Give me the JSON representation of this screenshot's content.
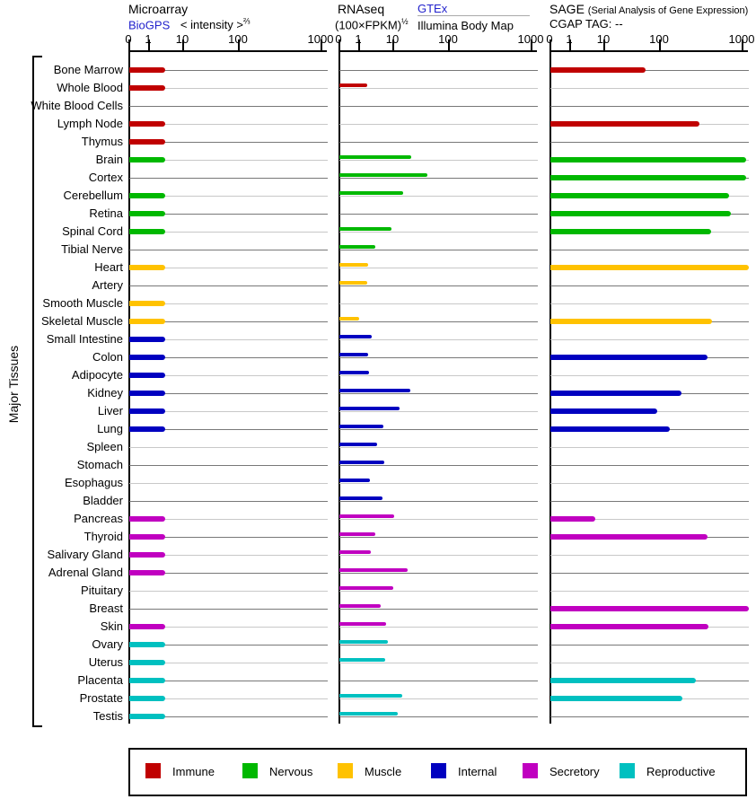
{
  "axis_title": "Major Tissues",
  "panels": [
    {
      "title": "Microarray",
      "link": "BioGPS",
      "scale_label": "< intensity >",
      "scale_sup": "⅔"
    },
    {
      "title": "RNAseq",
      "scale_label": "(100×FPKM)",
      "scale_sup": "½",
      "link": "GTEx",
      "link2": "Illumina Body Map"
    },
    {
      "title": "SAGE",
      "subtitle": "(Serial Analysis of Gene Expression)",
      "cgap_label": "CGAP TAG:",
      "cgap_value": "--"
    }
  ],
  "legend": {
    "items": [
      {
        "label": "Immune",
        "color": "#c00000"
      },
      {
        "label": "Nervous",
        "color": "#00b800"
      },
      {
        "label": "Muscle",
        "color": "#ffc200"
      },
      {
        "label": "Internal",
        "color": "#0000c0"
      },
      {
        "label": "Secretory",
        "color": "#c000c0"
      },
      {
        "label": "Reproductive",
        "color": "#00c0c0"
      }
    ]
  },
  "chart_data": {
    "type": "bar",
    "orientation": "horizontal",
    "scale_note": "nonlinear axis, ticks at 0/1/10/100/1000; values are approximate axis readings",
    "axis_tick_labels": [
      "0",
      "1",
      "10",
      "100",
      "1000"
    ],
    "axis_ticks": [
      0,
      1,
      10,
      100,
      1000
    ],
    "panel_keys": [
      "microarray",
      "rnaseq",
      "sage"
    ],
    "group_colors": {
      "immune": "#c00000",
      "nervous": "#00b800",
      "muscle": "#ffc200",
      "internal": "#0000c0",
      "secretory": "#c000c0",
      "reproductive": "#00c0c0"
    },
    "rows": [
      {
        "tissue": "Bone Marrow",
        "group": "immune",
        "microarray": 3,
        "rnaseq": null,
        "sage": 55
      },
      {
        "tissue": "Whole Blood",
        "group": "immune",
        "microarray": 3,
        "rnaseq": 1.7,
        "sage": null
      },
      {
        "tissue": "White Blood Cells",
        "group": "immune",
        "microarray": null,
        "rnaseq": null,
        "sage": null
      },
      {
        "tissue": "Lymph Node",
        "group": "immune",
        "microarray": 3,
        "rnaseq": null,
        "sage": 300
      },
      {
        "tissue": "Thymus",
        "group": "immune",
        "microarray": 3,
        "rnaseq": null,
        "sage": null
      },
      {
        "tissue": "Brain",
        "group": "nervous",
        "microarray": 3,
        "rnaseq": 21,
        "sage": 1100
      },
      {
        "tissue": "Cortex",
        "group": "nervous",
        "microarray": null,
        "rnaseq": 40,
        "sage": 1100
      },
      {
        "tissue": "Cerebellum",
        "group": "nervous",
        "microarray": 3,
        "rnaseq": 15,
        "sage": 690
      },
      {
        "tissue": "Retina",
        "group": "nervous",
        "microarray": 3,
        "rnaseq": null,
        "sage": 730
      },
      {
        "tissue": "Spinal Cord",
        "group": "nervous",
        "microarray": 3,
        "rnaseq": 9,
        "sage": 420
      },
      {
        "tissue": "Tibial Nerve",
        "group": "nervous",
        "microarray": null,
        "rnaseq": 3,
        "sage": null
      },
      {
        "tissue": "Heart",
        "group": "muscle",
        "microarray": 3,
        "rnaseq": 1.8,
        "sage": 1300
      },
      {
        "tissue": "Artery",
        "group": "muscle",
        "microarray": null,
        "rnaseq": 1.7,
        "sage": null
      },
      {
        "tissue": "Smooth Muscle",
        "group": "muscle",
        "microarray": 3,
        "rnaseq": null,
        "sage": null
      },
      {
        "tissue": "Skeletal Muscle",
        "group": "muscle",
        "microarray": 3,
        "rnaseq": 1,
        "sage": 430
      },
      {
        "tissue": "Small Intestine",
        "group": "internal",
        "microarray": 3,
        "rnaseq": 2.3,
        "sage": null
      },
      {
        "tissue": "Colon",
        "group": "internal",
        "microarray": 3,
        "rnaseq": 1.8,
        "sage": 375
      },
      {
        "tissue": "Adipocyte",
        "group": "internal",
        "microarray": 3,
        "rnaseq": 1.9,
        "sage": null
      },
      {
        "tissue": "Kidney",
        "group": "internal",
        "microarray": 3,
        "rnaseq": 20,
        "sage": 180
      },
      {
        "tissue": "Liver",
        "group": "internal",
        "microarray": 3,
        "rnaseq": 13,
        "sage": 90
      },
      {
        "tissue": "Lung",
        "group": "internal",
        "microarray": 3,
        "rnaseq": 5,
        "sage": 130
      },
      {
        "tissue": "Spleen",
        "group": "internal",
        "microarray": null,
        "rnaseq": 3.4,
        "sage": null
      },
      {
        "tissue": "Stomach",
        "group": "internal",
        "microarray": null,
        "rnaseq": 5.4,
        "sage": null
      },
      {
        "tissue": "Esophagus",
        "group": "internal",
        "microarray": null,
        "rnaseq": 2.1,
        "sage": null
      },
      {
        "tissue": "Bladder",
        "group": "internal",
        "microarray": null,
        "rnaseq": 4.8,
        "sage": null
      },
      {
        "tissue": "Pancreas",
        "group": "secretory",
        "microarray": 3,
        "rnaseq": 10.5,
        "sage": 5.5
      },
      {
        "tissue": "Thyroid",
        "group": "secretory",
        "microarray": 3,
        "rnaseq": 3,
        "sage": 375
      },
      {
        "tissue": "Salivary Gland",
        "group": "secretory",
        "microarray": 3,
        "rnaseq": 2.2,
        "sage": null
      },
      {
        "tissue": "Adrenal Gland",
        "group": "secretory",
        "microarray": 3,
        "rnaseq": 18,
        "sage": null
      },
      {
        "tissue": "Pituitary",
        "group": "secretory",
        "microarray": null,
        "rnaseq": 10,
        "sage": null
      },
      {
        "tissue": "Breast",
        "group": "secretory",
        "microarray": null,
        "rnaseq": 4.3,
        "sage": 1300
      },
      {
        "tissue": "Skin",
        "group": "secretory",
        "microarray": 3,
        "rnaseq": 6,
        "sage": 385
      },
      {
        "tissue": "Ovary",
        "group": "reproductive",
        "microarray": 3,
        "rnaseq": 7,
        "sage": null
      },
      {
        "tissue": "Uterus",
        "group": "reproductive",
        "microarray": 3,
        "rnaseq": 5.7,
        "sage": null
      },
      {
        "tissue": "Placenta",
        "group": "reproductive",
        "microarray": 3,
        "rnaseq": null,
        "sage": 270
      },
      {
        "tissue": "Prostate",
        "group": "reproductive",
        "microarray": 3,
        "rnaseq": 14.5,
        "sage": 185
      },
      {
        "tissue": "Testis",
        "group": "reproductive",
        "microarray": 3,
        "rnaseq": 12,
        "sage": null
      }
    ]
  }
}
